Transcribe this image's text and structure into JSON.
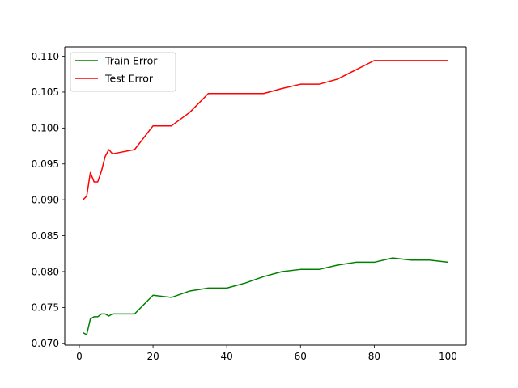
{
  "chart_data": {
    "type": "line",
    "title": "",
    "xlabel": "",
    "ylabel": "",
    "xlim": [
      -3.95,
      104.95
    ],
    "ylim": [
      0.06975,
      0.1113
    ],
    "x_ticks": [
      0,
      20,
      40,
      60,
      80,
      100
    ],
    "y_ticks": [
      0.07,
      0.075,
      0.08,
      0.085,
      0.09,
      0.095,
      0.1,
      0.105,
      0.11
    ],
    "y_tick_labels": [
      "0.070",
      "0.075",
      "0.080",
      "0.085",
      "0.090",
      "0.095",
      "0.100",
      "0.105",
      "0.110"
    ],
    "legend_position": "upper-left",
    "grid": false,
    "x": [
      1,
      2,
      3,
      4,
      5,
      6,
      7,
      8,
      9,
      10,
      15,
      20,
      25,
      30,
      35,
      40,
      45,
      50,
      55,
      60,
      65,
      70,
      75,
      80,
      85,
      90,
      95,
      100
    ],
    "series": [
      {
        "name": "Train Error",
        "color": "#008000",
        "values": [
          0.0715,
          0.0712,
          0.0734,
          0.0737,
          0.0737,
          0.0741,
          0.0741,
          0.0738,
          0.0741,
          0.0741,
          0.0741,
          0.0767,
          0.0764,
          0.0773,
          0.0777,
          0.0777,
          0.0784,
          0.0793,
          0.08,
          0.0803,
          0.0803,
          0.0809,
          0.0813,
          0.0813,
          0.0819,
          0.0816,
          0.0816,
          0.0813
        ]
      },
      {
        "name": "Test Error",
        "color": "#ff0000",
        "values": [
          0.09,
          0.0905,
          0.0938,
          0.0925,
          0.0925,
          0.094,
          0.096,
          0.097,
          0.0964,
          0.0965,
          0.097,
          0.1003,
          0.1003,
          0.1022,
          0.1048,
          0.1048,
          0.1048,
          0.1048,
          0.1055,
          0.1061,
          0.1061,
          0.1068,
          0.1081,
          0.1094,
          0.1094,
          0.1094,
          0.1094,
          0.1094
        ]
      }
    ]
  }
}
